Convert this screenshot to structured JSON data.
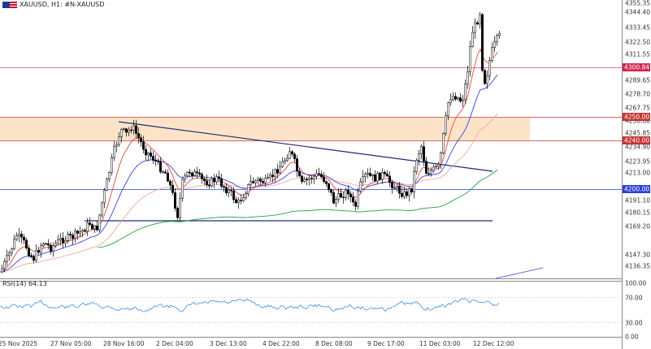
{
  "title": {
    "symbol_text": "XAUUSD, H1:  #N-XAUUSD",
    "flag_icon": "us-flag-icon"
  },
  "price_axis": {
    "labels": [
      "4355.35",
      "4344.40",
      "4333.45",
      "4322.50",
      "4311.55",
      "4289.65",
      "4278.70",
      "4267.75",
      "4256.80",
      "4245.85",
      "4234.90",
      "4223.95",
      "4213.00",
      "4191.10",
      "4180.15",
      "4169.20",
      "4147.30",
      "4136.35"
    ],
    "tags": [
      {
        "text": "4300.84",
        "color": "#d0274f",
        "line_color": "#c44b6a"
      },
      {
        "text": "4250.00",
        "color": "#c23535",
        "line_color": "#c23535"
      },
      {
        "text": "4240.00",
        "color": "#c23535",
        "line_color": "#c23535"
      },
      {
        "text": "4200.00",
        "color": "#2b3fd6",
        "line_color": "#2b3fd6"
      }
    ]
  },
  "rsi": {
    "label": "RSI(14) 64.13",
    "axis_labels": [
      "100.00",
      "70.00",
      "30.00",
      "0.00"
    ]
  },
  "time_axis": {
    "labels": [
      "25 Nov 2025",
      "27 Nov 05:00",
      "28 Nov 16:00",
      "2 Dec 04:00",
      "3 Dec 13:00",
      "4 Dec 22:00",
      "8 Dec 08:00",
      "9 Dec 17:00",
      "11 Dec 03:00",
      "12 Dec 12:00"
    ]
  },
  "colors": {
    "zone_fill": "#fde4c8",
    "trendline": "#1e2a78",
    "ema_fast": "#e04a3a",
    "ema_slow": "#f3a7a0",
    "ma_blue": "#3a3fd6",
    "ma_green": "#2e9e3a",
    "rsi_line": "#3b8fe0",
    "candle": "#000000"
  }
}
